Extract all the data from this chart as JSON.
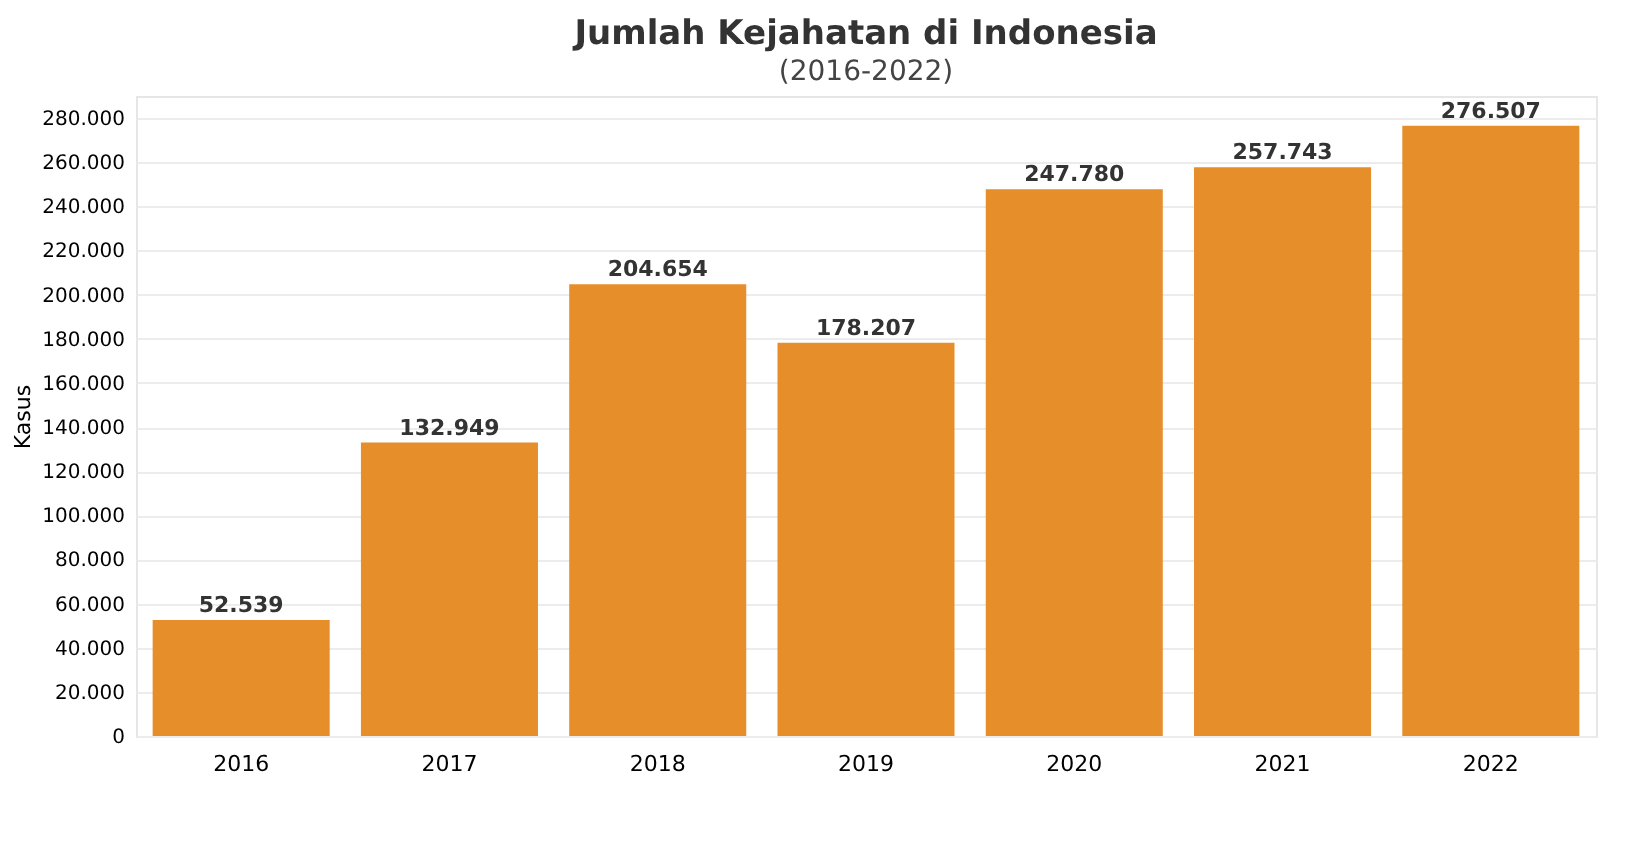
{
  "chart_data": {
    "type": "bar",
    "title": "Jumlah Kejahatan di Indonesia",
    "subtitle": "(2016-2022)",
    "ylabel": "Kasus",
    "categories": [
      "2016",
      "2017",
      "2018",
      "2019",
      "2020",
      "2021",
      "2022"
    ],
    "values": [
      52539,
      132949,
      204654,
      178207,
      247780,
      257743,
      276507
    ],
    "value_labels": [
      "52.539",
      "132.949",
      "204.654",
      "178.207",
      "247.780",
      "257.743",
      "276.507"
    ],
    "color": "#e68e2a",
    "ylim": [
      0,
      290000
    ],
    "yticks": [
      0,
      {
        "value": 20000,
        "label": "20.000"
      },
      {
        "value": 40000,
        "label": "40.000"
      },
      {
        "value": 60000,
        "label": "60.000"
      },
      {
        "value": 80000,
        "label": "80.000"
      },
      {
        "value": 100000,
        "label": "100.000"
      },
      {
        "value": 120000,
        "label": "120.000"
      },
      {
        "value": 140000,
        "label": "140.000"
      },
      {
        "value": 160000,
        "label": "160.000"
      },
      {
        "value": 180000,
        "label": "180.000"
      },
      {
        "value": 200000,
        "label": "200.000"
      },
      {
        "value": 220000,
        "label": "220.000"
      },
      {
        "value": 240000,
        "label": "240.000"
      },
      {
        "value": 260000,
        "label": "260.000"
      },
      {
        "value": 280000,
        "label": "280.000"
      }
    ],
    "grid": "y"
  }
}
